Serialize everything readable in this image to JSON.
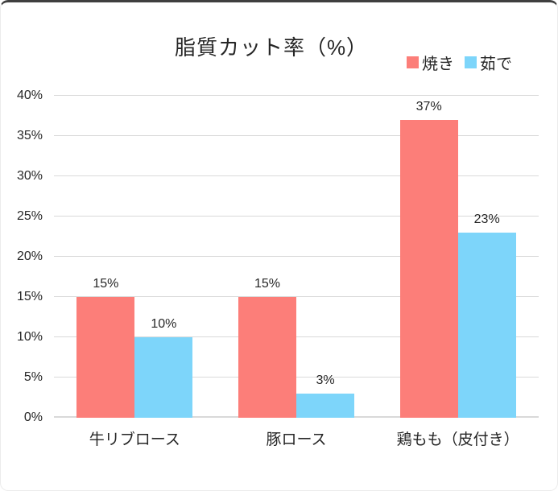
{
  "chart_data": {
    "type": "bar",
    "title": "脂質カット率（%）",
    "categories": [
      "牛リブロース",
      "豚ロース",
      "鶏もも（皮付き）"
    ],
    "series": [
      {
        "name": "焼き",
        "color": "#FC7E79",
        "values": [
          15,
          15,
          37
        ]
      },
      {
        "name": "茹で",
        "color": "#7DD5FA",
        "values": [
          10,
          3,
          23
        ]
      }
    ],
    "xlabel": "",
    "ylabel": "",
    "ylim": [
      0,
      40
    ],
    "ytick_step": 5,
    "tick_suffix": "%",
    "data_labels": true,
    "data_label_suffix": "%",
    "grid": true,
    "gridline_color": "#D9D9D9",
    "axis_line_color": "#D9D9D9",
    "text_color": "#262626",
    "legend_position": "top-right"
  }
}
